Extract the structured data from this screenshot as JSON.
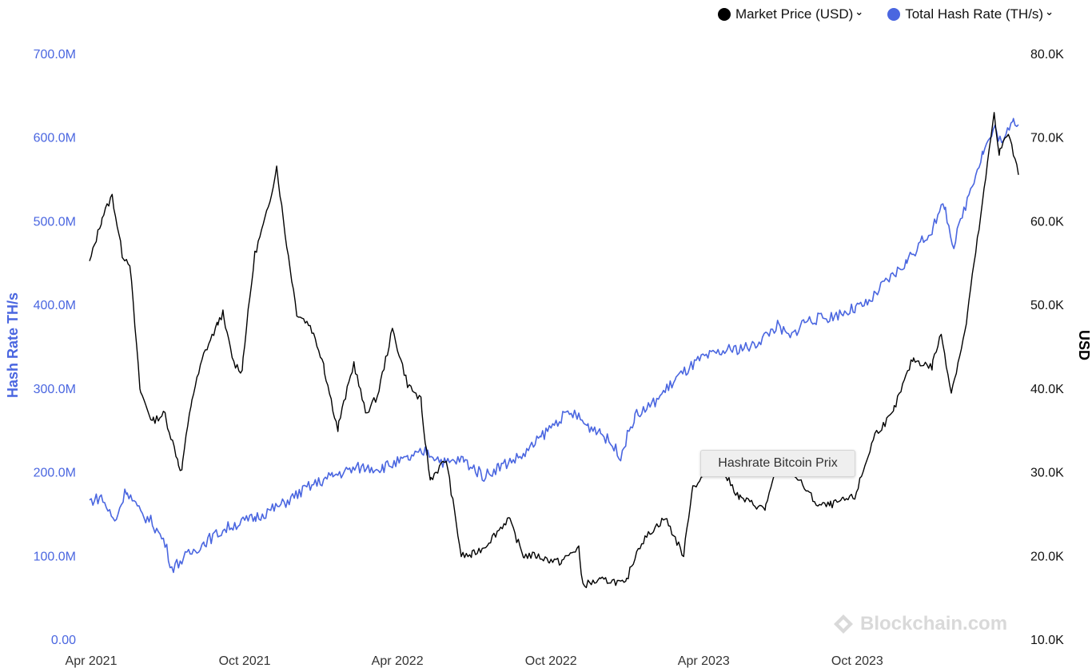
{
  "legend": {
    "items": [
      {
        "label": "Market Price (USD)",
        "color": "#000000",
        "icon": "chevron-down-icon"
      },
      {
        "label": "Total Hash Rate (TH/s)",
        "color": "#4a66e0",
        "icon": "chevron-down-icon"
      }
    ]
  },
  "tooltip": {
    "text": "Hashrate Bitcoin Prix"
  },
  "watermark": {
    "text": "Blockchain.com",
    "icon": "blockchain-logo-icon"
  },
  "chart_data": {
    "type": "line",
    "title": "",
    "xlabel": "",
    "grid": false,
    "legend_position": "top-right",
    "x_ticks": [
      "Apr 2021",
      "Oct 2021",
      "Apr 2022",
      "Oct 2022",
      "Apr 2023",
      "Oct 2023"
    ],
    "y_left": {
      "label": "Hash Rate TH/s",
      "ticks": [
        "0.00",
        "100.0M",
        "200.0M",
        "300.0M",
        "400.0M",
        "500.0M",
        "600.0M",
        "700.0M"
      ],
      "range": [
        0,
        700000000
      ],
      "color": "#4a66e0"
    },
    "y_right": {
      "label": "USD",
      "ticks": [
        "10.0K",
        "20.0K",
        "30.0K",
        "40.0K",
        "50.0K",
        "60.0K",
        "70.0K",
        "80.0K"
      ],
      "range": [
        10000,
        80000
      ],
      "color": "#000000"
    },
    "series": [
      {
        "name": "Market Price (USD)",
        "axis": "right",
        "color": "#000000",
        "points": [
          [
            "2021-04-01",
            55000
          ],
          [
            "2021-04-15",
            60000
          ],
          [
            "2021-04-28",
            63000
          ],
          [
            "2021-05-10",
            56000
          ],
          [
            "2021-05-19",
            55000
          ],
          [
            "2021-05-31",
            40000
          ],
          [
            "2021-06-15",
            36000
          ],
          [
            "2021-06-30",
            37000
          ],
          [
            "2021-07-15",
            31500
          ],
          [
            "2021-07-20",
            30000
          ],
          [
            "2021-07-31",
            38000
          ],
          [
            "2021-08-15",
            44000
          ],
          [
            "2021-08-31",
            47500
          ],
          [
            "2021-09-07",
            49000
          ],
          [
            "2021-09-20",
            43000
          ],
          [
            "2021-09-30",
            42000
          ],
          [
            "2021-10-15",
            56000
          ],
          [
            "2021-10-31",
            61500
          ],
          [
            "2021-11-10",
            66500
          ],
          [
            "2021-11-20",
            58500
          ],
          [
            "2021-12-04",
            49000
          ],
          [
            "2021-12-20",
            47500
          ],
          [
            "2022-01-05",
            43000
          ],
          [
            "2022-01-22",
            35000
          ],
          [
            "2022-02-10",
            43000
          ],
          [
            "2022-02-24",
            37000
          ],
          [
            "2022-03-10",
            39000
          ],
          [
            "2022-03-28",
            47000
          ],
          [
            "2022-04-15",
            40500
          ],
          [
            "2022-05-01",
            38500
          ],
          [
            "2022-05-12",
            29000
          ],
          [
            "2022-05-31",
            31500
          ],
          [
            "2022-06-18",
            20000
          ],
          [
            "2022-06-30",
            20000
          ],
          [
            "2022-07-15",
            21000
          ],
          [
            "2022-08-14",
            24500
          ],
          [
            "2022-08-31",
            20000
          ],
          [
            "2022-09-15",
            20000
          ],
          [
            "2022-09-30",
            19500
          ],
          [
            "2022-10-15",
            19200
          ],
          [
            "2022-11-05",
            21000
          ],
          [
            "2022-11-10",
            16500
          ],
          [
            "2022-11-30",
            17000
          ],
          [
            "2022-12-15",
            17000
          ],
          [
            "2022-12-31",
            16500
          ],
          [
            "2023-01-15",
            21000
          ],
          [
            "2023-01-31",
            23000
          ],
          [
            "2023-02-16",
            24500
          ],
          [
            "2023-03-10",
            20000
          ],
          [
            "2023-03-20",
            28000
          ],
          [
            "2023-04-14",
            30500
          ],
          [
            "2023-04-30",
            29500
          ],
          [
            "2023-05-15",
            27000
          ],
          [
            "2023-06-15",
            25500
          ],
          [
            "2023-06-30",
            30500
          ],
          [
            "2023-07-15",
            30500
          ],
          [
            "2023-08-17",
            26000
          ],
          [
            "2023-08-31",
            26000
          ],
          [
            "2023-09-15",
            26500
          ],
          [
            "2023-09-30",
            27000
          ],
          [
            "2023-10-24",
            34500
          ],
          [
            "2023-11-15",
            37000
          ],
          [
            "2023-12-08",
            43500
          ],
          [
            "2023-12-31",
            42500
          ],
          [
            "2024-01-11",
            46500
          ],
          [
            "2024-01-23",
            39500
          ],
          [
            "2024-02-10",
            47500
          ],
          [
            "2024-02-29",
            62000
          ],
          [
            "2024-03-14",
            73000
          ],
          [
            "2024-03-20",
            68000
          ],
          [
            "2024-03-31",
            70500
          ],
          [
            "2024-04-12",
            65500
          ]
        ]
      },
      {
        "name": "Total Hash Rate (TH/s)",
        "axis": "left",
        "color": "#4a66e0",
        "points": [
          [
            "2021-04-01",
            165000000
          ],
          [
            "2021-04-15",
            170000000
          ],
          [
            "2021-05-01",
            140000000
          ],
          [
            "2021-05-15",
            180000000
          ],
          [
            "2021-06-01",
            150000000
          ],
          [
            "2021-06-15",
            140000000
          ],
          [
            "2021-06-30",
            115000000
          ],
          [
            "2021-07-08",
            85000000
          ],
          [
            "2021-07-20",
            95000000
          ],
          [
            "2021-08-15",
            115000000
          ],
          [
            "2021-09-15",
            135000000
          ],
          [
            "2021-10-15",
            145000000
          ],
          [
            "2021-11-15",
            160000000
          ],
          [
            "2021-12-15",
            180000000
          ],
          [
            "2022-01-15",
            195000000
          ],
          [
            "2022-02-15",
            205000000
          ],
          [
            "2022-03-15",
            205000000
          ],
          [
            "2022-04-15",
            215000000
          ],
          [
            "2022-05-08",
            225000000
          ],
          [
            "2022-05-31",
            210000000
          ],
          [
            "2022-06-20",
            215000000
          ],
          [
            "2022-07-15",
            195000000
          ],
          [
            "2022-07-31",
            205000000
          ],
          [
            "2022-08-31",
            220000000
          ],
          [
            "2022-09-20",
            240000000
          ],
          [
            "2022-10-15",
            265000000
          ],
          [
            "2022-10-31",
            270000000
          ],
          [
            "2022-11-15",
            255000000
          ],
          [
            "2022-11-30",
            250000000
          ],
          [
            "2022-12-25",
            220000000
          ],
          [
            "2023-01-10",
            265000000
          ],
          [
            "2023-01-31",
            280000000
          ],
          [
            "2023-02-28",
            310000000
          ],
          [
            "2023-03-31",
            335000000
          ],
          [
            "2023-04-30",
            345000000
          ],
          [
            "2023-05-31",
            350000000
          ],
          [
            "2023-06-30",
            375000000
          ],
          [
            "2023-07-15",
            360000000
          ],
          [
            "2023-07-31",
            380000000
          ],
          [
            "2023-08-31",
            385000000
          ],
          [
            "2023-09-30",
            395000000
          ],
          [
            "2023-10-15",
            400000000
          ],
          [
            "2023-10-31",
            420000000
          ],
          [
            "2023-11-30",
            450000000
          ],
          [
            "2023-12-31",
            490000000
          ],
          [
            "2024-01-15",
            520000000
          ],
          [
            "2024-01-26",
            470000000
          ],
          [
            "2024-02-15",
            540000000
          ],
          [
            "2024-02-29",
            580000000
          ],
          [
            "2024-03-15",
            610000000
          ],
          [
            "2024-03-25",
            590000000
          ],
          [
            "2024-04-05",
            625000000
          ],
          [
            "2024-04-12",
            615000000
          ]
        ]
      }
    ]
  }
}
